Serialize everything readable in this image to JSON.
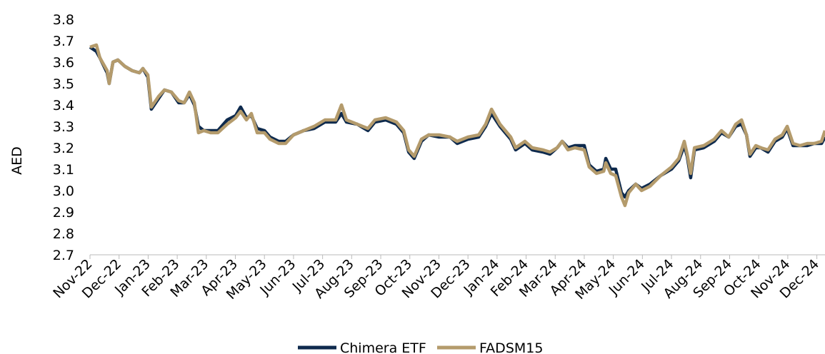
{
  "chart_data": {
    "type": "line",
    "y_label": "AED",
    "x": [
      0,
      0.22,
      0.34,
      0.59,
      0.66,
      0.79,
      0.96,
      1.2,
      1.45,
      1.7,
      1.82,
      1.99,
      2.11,
      2.36,
      2.56,
      2.8,
      3.05,
      3.24,
      3.42,
      3.59,
      3.73,
      3.91,
      4.15,
      4.4,
      4.72,
      5.01,
      5.18,
      5.38,
      5.55,
      5.75,
      6.0,
      6.19,
      6.49,
      6.73,
      7.0,
      7.35,
      7.71,
      8.08,
      8.45,
      8.65,
      8.82,
      9.19,
      9.56,
      9.8,
      10.17,
      10.54,
      10.79,
      10.96,
      11.15,
      11.4,
      11.65,
      12.01,
      12.38,
      12.63,
      13.0,
      13.37,
      13.61,
      13.81,
      14.1,
      14.47,
      14.64,
      14.96,
      15.21,
      15.58,
      15.82,
      16.07,
      16.24,
      16.44,
      16.68,
      17.0,
      17.17,
      17.42,
      17.67,
      17.74,
      17.91,
      18.08,
      18.28,
      18.4,
      18.53,
      18.77,
      18.97,
      19.26,
      19.63,
      20.0,
      20.25,
      20.44,
      20.54,
      20.66,
      20.79,
      21.11,
      21.47,
      21.72,
      21.97,
      22.21,
      22.41,
      22.58,
      22.7,
      22.9,
      23.07,
      23.32,
      23.56,
      23.81,
      23.98,
      24.18,
      24.42,
      24.67,
      24.91,
      25.16,
      25.28
    ],
    "series": [
      {
        "name": "Chimera ETF",
        "color": "#0e2a4d",
        "values": [
          3.67,
          3.65,
          3.62,
          3.55,
          3.5,
          3.6,
          3.61,
          3.58,
          3.56,
          3.55,
          3.57,
          3.53,
          3.38,
          3.43,
          3.47,
          3.46,
          3.41,
          3.41,
          3.45,
          3.4,
          3.3,
          3.28,
          3.28,
          3.28,
          3.33,
          3.35,
          3.39,
          3.34,
          3.35,
          3.29,
          3.28,
          3.25,
          3.23,
          3.23,
          3.26,
          3.28,
          3.29,
          3.32,
          3.32,
          3.36,
          3.32,
          3.31,
          3.28,
          3.32,
          3.33,
          3.31,
          3.27,
          3.18,
          3.15,
          3.23,
          3.26,
          3.25,
          3.25,
          3.22,
          3.24,
          3.25,
          3.3,
          3.36,
          3.3,
          3.24,
          3.19,
          3.22,
          3.19,
          3.18,
          3.17,
          3.2,
          3.23,
          3.2,
          3.21,
          3.21,
          3.12,
          3.09,
          3.1,
          3.15,
          3.1,
          3.1,
          2.99,
          2.97,
          3.0,
          3.03,
          3.01,
          3.03,
          3.07,
          3.1,
          3.14,
          3.21,
          3.16,
          3.06,
          3.19,
          3.2,
          3.23,
          3.27,
          3.25,
          3.3,
          3.31,
          3.26,
          3.16,
          3.2,
          3.2,
          3.18,
          3.23,
          3.25,
          3.29,
          3.21,
          3.21,
          3.21,
          3.22,
          3.22,
          3.25
        ]
      },
      {
        "name": "FADSM15",
        "color": "#b49b6c",
        "values": [
          3.67,
          3.68,
          3.62,
          3.56,
          3.5,
          3.6,
          3.61,
          3.58,
          3.56,
          3.55,
          3.57,
          3.54,
          3.39,
          3.44,
          3.47,
          3.46,
          3.42,
          3.41,
          3.46,
          3.41,
          3.27,
          3.28,
          3.27,
          3.27,
          3.31,
          3.34,
          3.37,
          3.33,
          3.36,
          3.27,
          3.27,
          3.24,
          3.22,
          3.22,
          3.26,
          3.28,
          3.3,
          3.33,
          3.33,
          3.4,
          3.33,
          3.31,
          3.29,
          3.33,
          3.34,
          3.32,
          3.28,
          3.19,
          3.16,
          3.24,
          3.26,
          3.26,
          3.25,
          3.23,
          3.25,
          3.26,
          3.31,
          3.38,
          3.31,
          3.25,
          3.2,
          3.23,
          3.2,
          3.19,
          3.18,
          3.2,
          3.23,
          3.19,
          3.2,
          3.19,
          3.11,
          3.08,
          3.09,
          3.13,
          3.08,
          3.07,
          2.97,
          2.93,
          2.99,
          3.03,
          3.0,
          3.02,
          3.07,
          3.11,
          3.15,
          3.23,
          3.17,
          3.08,
          3.2,
          3.21,
          3.24,
          3.28,
          3.25,
          3.31,
          3.33,
          3.26,
          3.17,
          3.21,
          3.2,
          3.19,
          3.24,
          3.26,
          3.3,
          3.22,
          3.21,
          3.22,
          3.22,
          3.23,
          3.28
        ]
      }
    ],
    "xlim": [
      0,
      25.28
    ],
    "xticks": [
      {
        "value": 0,
        "label": "Nov-22"
      },
      {
        "value": 1,
        "label": "Dec-22"
      },
      {
        "value": 2,
        "label": "Jan-23"
      },
      {
        "value": 3,
        "label": "Feb-23"
      },
      {
        "value": 4,
        "label": "Mar-23"
      },
      {
        "value": 5,
        "label": "Apr-23"
      },
      {
        "value": 6,
        "label": "May-23"
      },
      {
        "value": 7,
        "label": "Jun-23"
      },
      {
        "value": 8,
        "label": "Jul-23"
      },
      {
        "value": 9,
        "label": "Aug-23"
      },
      {
        "value": 10,
        "label": "Sep-23"
      },
      {
        "value": 11,
        "label": "Oct-23"
      },
      {
        "value": 12,
        "label": "Nov-23"
      },
      {
        "value": 13,
        "label": "Dec-23"
      },
      {
        "value": 14,
        "label": "Jan-24"
      },
      {
        "value": 15,
        "label": "Feb-24"
      },
      {
        "value": 16,
        "label": "Mar-24"
      },
      {
        "value": 17,
        "label": "Apr-24"
      },
      {
        "value": 18,
        "label": "May-24"
      },
      {
        "value": 19,
        "label": "Jun-24"
      },
      {
        "value": 20,
        "label": "Jul-24"
      },
      {
        "value": 21,
        "label": "Aug-24"
      },
      {
        "value": 22,
        "label": "Sep-24"
      },
      {
        "value": 23,
        "label": "Oct-24"
      },
      {
        "value": 24,
        "label": "Nov-24"
      },
      {
        "value": 25,
        "label": "Dec-24"
      }
    ],
    "ylim": [
      2.7,
      3.8
    ],
    "yticks": [
      {
        "value": 2.7,
        "label": "2.7"
      },
      {
        "value": 2.8,
        "label": "2.8"
      },
      {
        "value": 2.9,
        "label": "2.9"
      },
      {
        "value": 3.0,
        "label": "3.0"
      },
      {
        "value": 3.1,
        "label": "3.1"
      },
      {
        "value": 3.2,
        "label": "3.2"
      },
      {
        "value": 3.3,
        "label": "3.3"
      },
      {
        "value": 3.4,
        "label": "3.4"
      },
      {
        "value": 3.5,
        "label": "3.5"
      },
      {
        "value": 3.6,
        "label": "3.6"
      },
      {
        "value": 3.7,
        "label": "3.7"
      },
      {
        "value": 3.8,
        "label": "3.8"
      }
    ],
    "grid": false,
    "legend": "bottom"
  }
}
